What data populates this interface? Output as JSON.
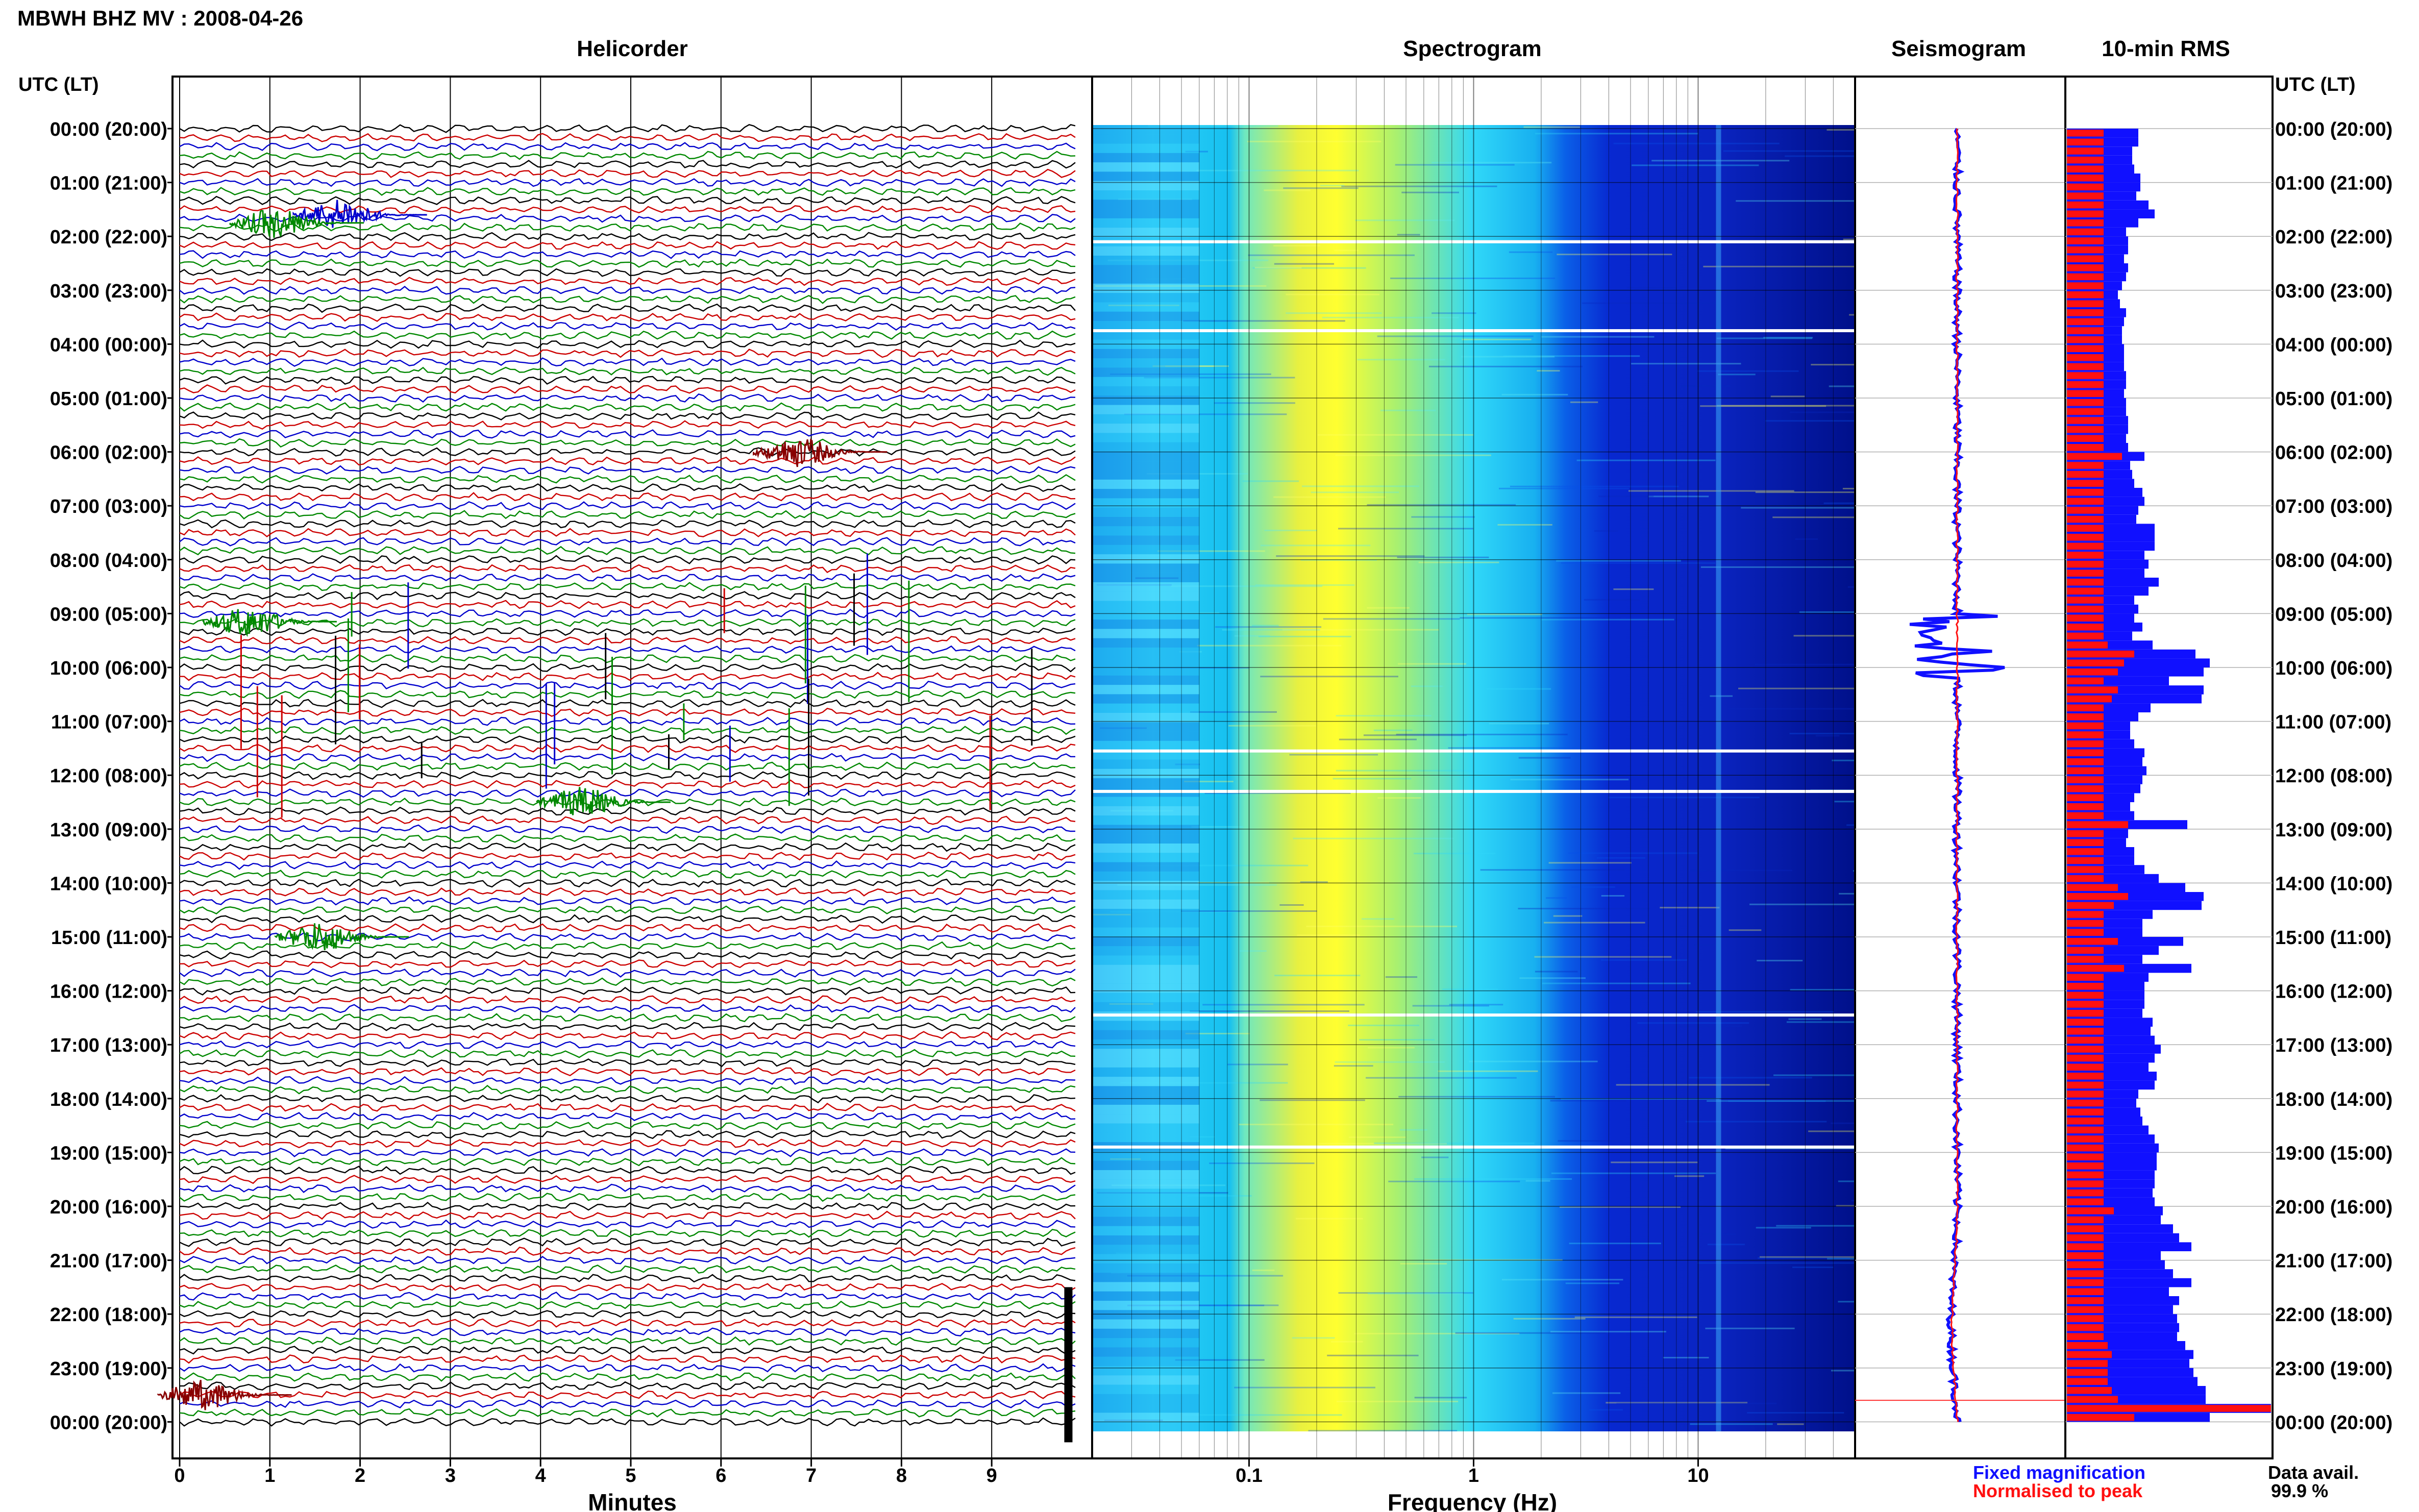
{
  "header": {
    "station": "MBWH BHZ MV : 2008-04-26",
    "time_axis_label_left": "UTC (LT)",
    "time_axis_label_right": "UTC (LT)"
  },
  "panels": {
    "helicorder": "Helicorder",
    "spectrogram": "Spectrogram",
    "seismogram": "Seismogram",
    "rms": "10-min RMS"
  },
  "axes": {
    "helicorder_xlabel": "Minutes",
    "spectrogram_xlabel": "Frequency (Hz)"
  },
  "legend": {
    "fixed": "Fixed magnification",
    "normalised": "Normalised to peak",
    "fixed_color": "#1010ff",
    "normalised_color": "#ff1010"
  },
  "data_availability": {
    "label": "Data avail.",
    "value": "99.9 %"
  },
  "chart_data": [
    {
      "type": "line",
      "title": "Helicorder",
      "xlabel": "Minutes",
      "ylabel": "UTC (LT)",
      "x_ticks": [
        "0",
        "1",
        "2",
        "3",
        "4",
        "5",
        "6",
        "7",
        "8",
        "9"
      ],
      "xlim": [
        0,
        10
      ],
      "time_labels": [
        "00:00 (20:00)",
        "01:00 (21:00)",
        "02:00 (22:00)",
        "03:00 (23:00)",
        "04:00 (00:00)",
        "05:00 (01:00)",
        "06:00 (02:00)",
        "07:00 (03:00)",
        "08:00 (04:00)",
        "09:00 (05:00)",
        "10:00 (06:00)",
        "11:00 (07:00)",
        "12:00 (08:00)",
        "13:00 (09:00)",
        "14:00 (10:00)",
        "15:00 (11:00)",
        "16:00 (12:00)",
        "17:00 (13:00)",
        "18:00 (14:00)",
        "19:00 (15:00)",
        "20:00 (16:00)",
        "21:00 (17:00)",
        "22:00 (18:00)",
        "23:00 (19:00)",
        "00:00 (20:00)"
      ],
      "trace_colors": [
        "#000000",
        "#cc0000",
        "#0000cc",
        "#008800"
      ],
      "events": [
        {
          "utc_hour": 1.6,
          "minute": 1.6,
          "color": "#0000cc"
        },
        {
          "utc_hour": 1.75,
          "minute": 0.9,
          "color": "#008800"
        },
        {
          "utc_hour": 6.0,
          "minute": 6.7,
          "color": "#880000"
        },
        {
          "utc_hour": 9.15,
          "minute": 0.6,
          "color": "#008800"
        },
        {
          "utc_hour": 12.5,
          "minute": 4.3,
          "color": "#008800"
        },
        {
          "utc_hour": 15.0,
          "minute": 1.4,
          "color": "#008800"
        },
        {
          "utc_hour": 23.5,
          "minute": 0.1,
          "color": "#880000"
        }
      ]
    },
    {
      "type": "heatmap",
      "title": "Spectrogram",
      "xlabel": "Frequency (Hz)",
      "x_scale": "log",
      "x_ticks": [
        "0.1",
        "1",
        "10"
      ],
      "xlim": [
        0.02,
        50
      ],
      "colormap": [
        "#00c8ff",
        "#40e0ff",
        "#ffff40",
        "#40c0ff",
        "#0030e0",
        "#000090"
      ],
      "energy_peak_hz": 0.25,
      "white_gap_hours": [
        2.1,
        3.75,
        11.55,
        12.3,
        16.45,
        18.9
      ]
    },
    {
      "type": "line",
      "title": "Seismogram",
      "series": [
        {
          "name": "Fixed magnification",
          "color": "#1010ff"
        },
        {
          "name": "Normalised to peak",
          "color": "#ff1010"
        }
      ]
    },
    {
      "type": "bar",
      "title": "10-min RMS",
      "orientation": "horizontal",
      "hours": 24,
      "bars_per_hour": 6,
      "series": [
        {
          "name": "Fixed magnification",
          "color": "#1010ff",
          "values": [
            0.35,
            0.35,
            0.32,
            0.32,
            0.33,
            0.36,
            0.36,
            0.34,
            0.4,
            0.43,
            0.35,
            0.29,
            0.3,
            0.3,
            0.28,
            0.3,
            0.29,
            0.27,
            0.25,
            0.26,
            0.29,
            0.28,
            0.27,
            0.27,
            0.28,
            0.28,
            0.28,
            0.29,
            0.29,
            0.28,
            0.29,
            0.29,
            0.3,
            0.3,
            0.29,
            0.3,
            0.38,
            0.31,
            0.32,
            0.33,
            0.37,
            0.38,
            0.35,
            0.34,
            0.43,
            0.43,
            0.43,
            0.38,
            0.4,
            0.38,
            0.45,
            0.4,
            0.33,
            0.35,
            0.33,
            0.37,
            0.32,
            0.42,
            0.63,
            0.7,
            0.67,
            0.5,
            0.67,
            0.66,
            0.41,
            0.35,
            0.31,
            0.31,
            0.33,
            0.38,
            0.37,
            0.39,
            0.37,
            0.36,
            0.33,
            0.31,
            0.33,
            0.59,
            0.3,
            0.29,
            0.33,
            0.33,
            0.38,
            0.45,
            0.58,
            0.67,
            0.66,
            0.42,
            0.37,
            0.37,
            0.57,
            0.45,
            0.37,
            0.61,
            0.4,
            0.38,
            0.38,
            0.38,
            0.37,
            0.42,
            0.41,
            0.43,
            0.46,
            0.43,
            0.4,
            0.44,
            0.43,
            0.35,
            0.34,
            0.36,
            0.37,
            0.4,
            0.43,
            0.45,
            0.44,
            0.44,
            0.43,
            0.43,
            0.42,
            0.43,
            0.47,
            0.46,
            0.52,
            0.55,
            0.61,
            0.46,
            0.48,
            0.52,
            0.61,
            0.5,
            0.55,
            0.52,
            0.54,
            0.55,
            0.54,
            0.58,
            0.62,
            0.6,
            0.62,
            0.64,
            0.68,
            0.68,
            1.0,
            0.7
          ]
        },
        {
          "name": "Normalised to peak",
          "color": "#ff1010",
          "values": [
            0.18,
            0.18,
            0.18,
            0.18,
            0.18,
            0.18,
            0.18,
            0.18,
            0.18,
            0.18,
            0.18,
            0.18,
            0.18,
            0.18,
            0.18,
            0.18,
            0.18,
            0.18,
            0.18,
            0.18,
            0.18,
            0.18,
            0.18,
            0.18,
            0.18,
            0.18,
            0.18,
            0.18,
            0.18,
            0.18,
            0.18,
            0.18,
            0.18,
            0.18,
            0.18,
            0.18,
            0.27,
            0.18,
            0.18,
            0.18,
            0.18,
            0.18,
            0.18,
            0.18,
            0.18,
            0.18,
            0.18,
            0.18,
            0.18,
            0.18,
            0.18,
            0.18,
            0.18,
            0.18,
            0.18,
            0.18,
            0.18,
            0.2,
            0.33,
            0.28,
            0.25,
            0.18,
            0.25,
            0.22,
            0.18,
            0.18,
            0.18,
            0.18,
            0.18,
            0.18,
            0.18,
            0.18,
            0.18,
            0.18,
            0.18,
            0.18,
            0.18,
            0.3,
            0.18,
            0.18,
            0.18,
            0.18,
            0.18,
            0.18,
            0.25,
            0.3,
            0.23,
            0.18,
            0.18,
            0.18,
            0.25,
            0.18,
            0.18,
            0.28,
            0.18,
            0.18,
            0.18,
            0.18,
            0.18,
            0.18,
            0.18,
            0.18,
            0.18,
            0.18,
            0.18,
            0.18,
            0.18,
            0.18,
            0.18,
            0.18,
            0.18,
            0.18,
            0.18,
            0.18,
            0.18,
            0.18,
            0.18,
            0.18,
            0.18,
            0.18,
            0.23,
            0.18,
            0.18,
            0.18,
            0.18,
            0.18,
            0.18,
            0.18,
            0.18,
            0.18,
            0.18,
            0.18,
            0.18,
            0.18,
            0.18,
            0.2,
            0.22,
            0.2,
            0.2,
            0.2,
            0.22,
            0.25,
            1.0,
            0.33
          ]
        }
      ]
    }
  ]
}
